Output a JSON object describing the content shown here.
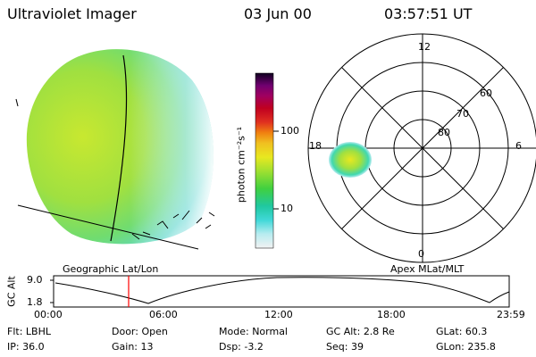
{
  "header": {
    "title": "Ultraviolet Imager",
    "date": "03 Jun 00",
    "time": "03:57:51 UT"
  },
  "colorbar": {
    "unit_label": "photon cm⁻²s⁻¹",
    "ticks": [
      "100",
      "10"
    ],
    "colors": [
      "#f2f2f2",
      "#b8ecf0",
      "#40d8d8",
      "#20c8a0",
      "#40d040",
      "#a0e030",
      "#e8e820",
      "#f0c020",
      "#f08010",
      "#e03020",
      "#c00020",
      "#a00060",
      "#700070",
      "#400060",
      "#100020"
    ]
  },
  "left_panel": {
    "caption": "Geographic Lat/Lon"
  },
  "right_panel": {
    "caption": "Apex MLat/MLT",
    "mlt_labels": {
      "top": "12",
      "right": "6",
      "bottom": "0",
      "left": "18"
    },
    "mlat_labels": [
      "60",
      "70",
      "80"
    ]
  },
  "timeline": {
    "ylabel": "GC Alt",
    "y_ticks": [
      "9.0",
      "1.8"
    ],
    "x_ticks": [
      "00:00",
      "06:00",
      "12:00",
      "18:00",
      "23:59"
    ],
    "marker_color": "#ff0000"
  },
  "info": {
    "row1": [
      {
        "label": "Flt:",
        "value": "LBHL"
      },
      {
        "label": "Door:",
        "value": "Open"
      },
      {
        "label": "Mode:",
        "value": "Normal"
      },
      {
        "label": "GC Alt:",
        "value": "2.8 Re"
      },
      {
        "label": "GLat:",
        "value": "60.3"
      }
    ],
    "row2": [
      {
        "label": "IP:",
        "value": "36.0"
      },
      {
        "label": "Gain:",
        "value": "13"
      },
      {
        "label": "Dsp:",
        "value": "-3.2"
      },
      {
        "label": "Seq:",
        "value": "39"
      },
      {
        "label": "GLon:",
        "value": "235.8"
      }
    ]
  }
}
